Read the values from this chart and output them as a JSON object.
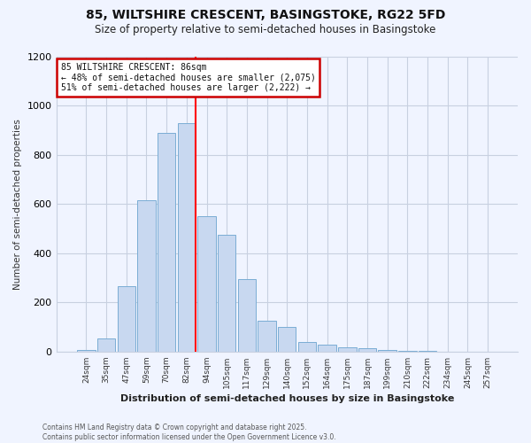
{
  "title_line1": "85, WILTSHIRE CRESCENT, BASINGSTOKE, RG22 5FD",
  "title_line2": "Size of property relative to semi-detached houses in Basingstoke",
  "xlabel": "Distribution of semi-detached houses by size in Basingstoke",
  "ylabel": "Number of semi-detached properties",
  "categories": [
    "24sqm",
    "35sqm",
    "47sqm",
    "59sqm",
    "70sqm",
    "82sqm",
    "94sqm",
    "105sqm",
    "117sqm",
    "129sqm",
    "140sqm",
    "152sqm",
    "164sqm",
    "175sqm",
    "187sqm",
    "199sqm",
    "210sqm",
    "222sqm",
    "234sqm",
    "245sqm",
    "257sqm"
  ],
  "values": [
    5,
    55,
    265,
    615,
    890,
    930,
    550,
    475,
    295,
    125,
    100,
    40,
    28,
    18,
    12,
    8,
    3,
    2,
    1,
    1,
    1
  ],
  "bar_color": "#c8d8f0",
  "bar_edge_color": "#7aadd4",
  "red_line_index": 5,
  "red_line_label": "85 WILTSHIRE CRESCENT: 86sqm",
  "annotation_line2": "← 48% of semi-detached houses are smaller (2,075)",
  "annotation_line3": "51% of semi-detached houses are larger (2,222) →",
  "annotation_box_color": "#ffffff",
  "annotation_box_edge": "#cc0000",
  "ylim": [
    0,
    1200
  ],
  "yticks": [
    0,
    200,
    400,
    600,
    800,
    1000,
    1200
  ],
  "background_color": "#f0f4ff",
  "grid_color": "#c8d0e0",
  "footer_line1": "Contains HM Land Registry data © Crown copyright and database right 2025.",
  "footer_line2": "Contains public sector information licensed under the Open Government Licence v3.0."
}
